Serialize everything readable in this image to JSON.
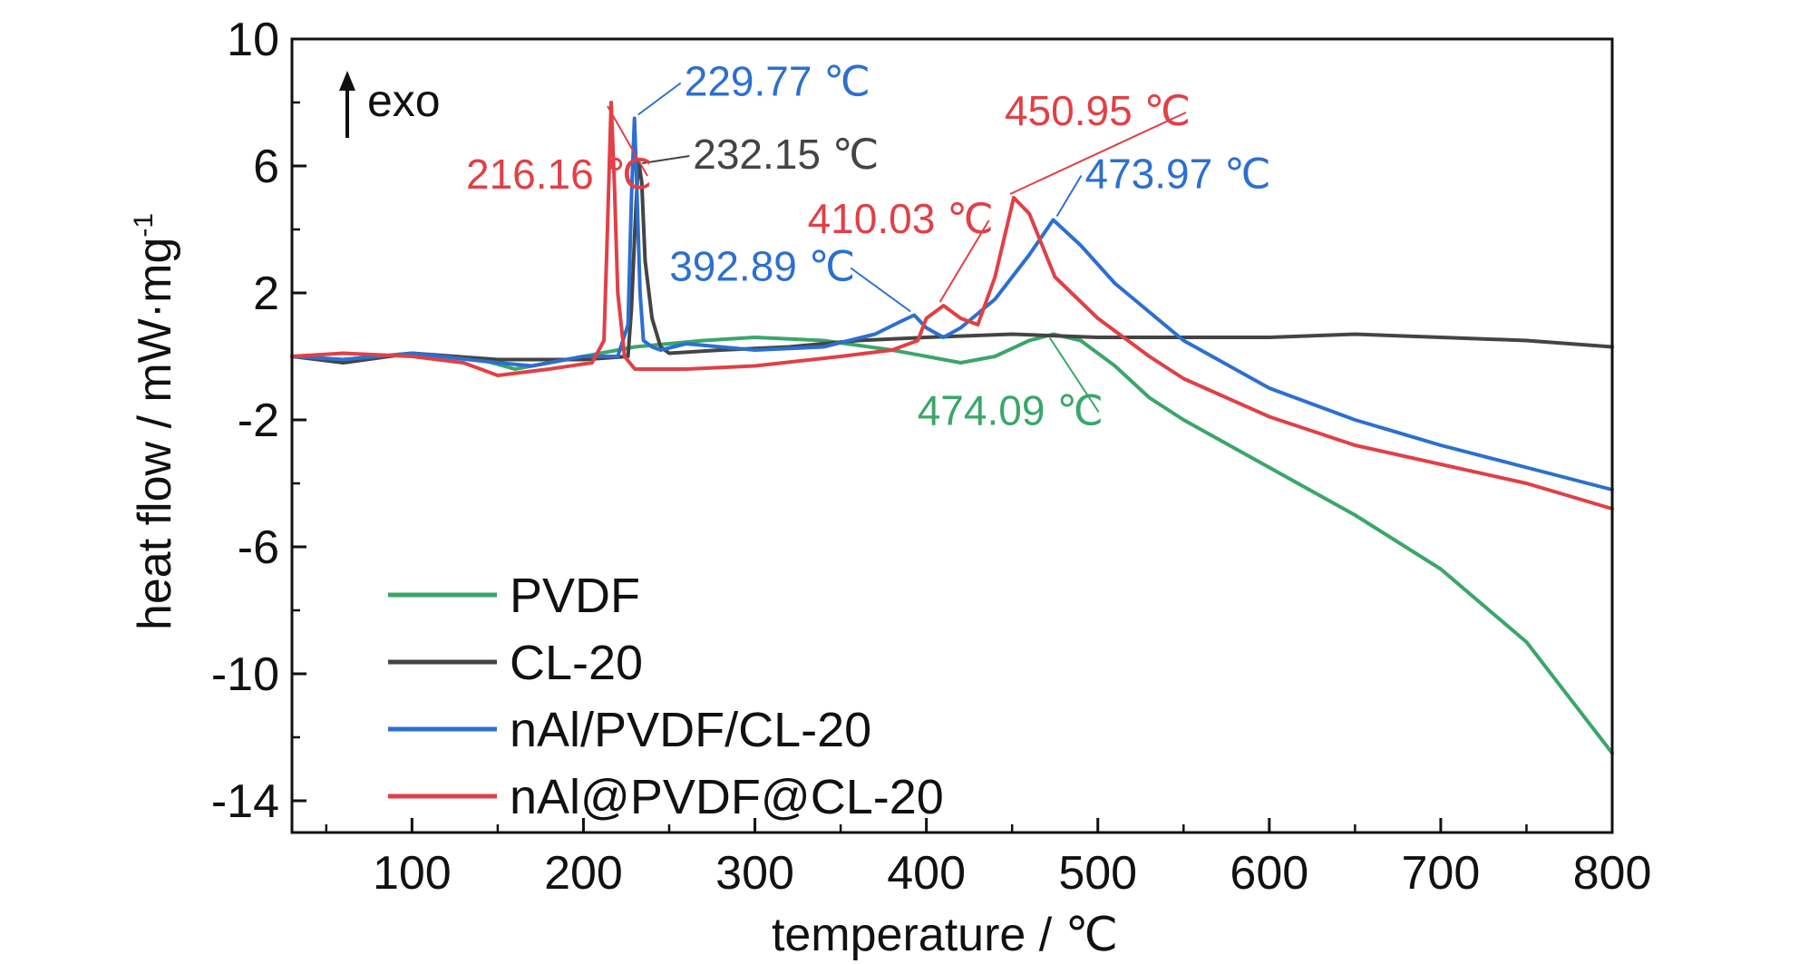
{
  "chart_data": {
    "type": "line",
    "title": "",
    "xlabel": "temperature / ℃",
    "ylabel": "heat flow / mW·mg",
    "ylabel_superscript": "-1",
    "xlim": [
      30,
      800
    ],
    "ylim": [
      -15,
      10
    ],
    "x_tick_labels": [
      "100",
      "200",
      "300",
      "400",
      "500",
      "600",
      "700",
      "800"
    ],
    "y_tick_labels": [
      "10",
      "6",
      "2",
      "-2",
      "-6",
      "-10",
      "-14"
    ],
    "grid": false,
    "legend_position": "bottom-left",
    "exo_label": "exo",
    "series": [
      {
        "name": "PVDF",
        "color": "#3aa66a",
        "x": [
          30,
          60,
          100,
          140,
          160,
          190,
          230,
          270,
          300,
          340,
          380,
          420,
          440,
          460,
          474,
          490,
          510,
          530,
          550,
          580,
          600,
          650,
          700,
          750,
          800
        ],
        "y": [
          0.0,
          -0.1,
          0.1,
          -0.1,
          -0.4,
          -0.1,
          0.3,
          0.5,
          0.6,
          0.5,
          0.2,
          -0.2,
          0.0,
          0.5,
          0.7,
          0.5,
          -0.3,
          -1.3,
          -2.0,
          -2.9,
          -3.5,
          -5.0,
          -6.7,
          -9.0,
          -12.5
        ]
      },
      {
        "name": "CL-20",
        "color": "#444444",
        "x": [
          30,
          60,
          100,
          150,
          200,
          226,
          228,
          230,
          232,
          234,
          236,
          240,
          245,
          250,
          280,
          320,
          360,
          400,
          450,
          500,
          550,
          600,
          650,
          700,
          750,
          800
        ],
        "y": [
          0.0,
          -0.2,
          0.1,
          -0.1,
          -0.1,
          0.0,
          1.5,
          4.0,
          6.2,
          5.5,
          3.0,
          1.2,
          0.3,
          0.1,
          0.2,
          0.3,
          0.5,
          0.6,
          0.7,
          0.6,
          0.6,
          0.6,
          0.7,
          0.6,
          0.5,
          0.3
        ]
      },
      {
        "name": "nAl/PVDF/CL-20",
        "color": "#2c6fd0",
        "x": [
          30,
          60,
          100,
          150,
          170,
          200,
          220,
          226,
          228,
          229.77,
          231,
          233,
          235,
          240,
          245,
          260,
          300,
          340,
          370,
          385,
          392.89,
          400,
          410,
          420,
          440,
          460,
          473.97,
          490,
          510,
          550,
          600,
          650,
          700,
          750,
          800
        ],
        "y": [
          0.0,
          -0.1,
          0.1,
          -0.2,
          -0.3,
          0.0,
          0.0,
          1.0,
          5.0,
          7.5,
          5.5,
          2.0,
          0.5,
          0.3,
          0.2,
          0.4,
          0.2,
          0.3,
          0.7,
          1.1,
          1.3,
          0.9,
          0.6,
          0.9,
          1.8,
          3.2,
          4.3,
          3.5,
          2.3,
          0.5,
          -1.0,
          -2.0,
          -2.8,
          -3.5,
          -4.2
        ]
      },
      {
        "name": "nAl@PVDF@CL-20",
        "color": "#e04046",
        "x": [
          30,
          60,
          100,
          130,
          150,
          180,
          205,
          212,
          214,
          216.16,
          218,
          220,
          224,
          230,
          260,
          300,
          350,
          380,
          395,
          400,
          410.03,
          420,
          430,
          440,
          450.95,
          460,
          475,
          500,
          530,
          550,
          600,
          650,
          700,
          750,
          800
        ],
        "y": [
          0.0,
          0.1,
          0.0,
          -0.2,
          -0.6,
          -0.4,
          -0.2,
          0.5,
          4.0,
          8.0,
          5.5,
          2.0,
          0.0,
          -0.4,
          -0.4,
          -0.3,
          0.0,
          0.2,
          0.5,
          1.2,
          1.6,
          1.2,
          1.0,
          2.5,
          5.0,
          4.5,
          2.5,
          1.2,
          0.0,
          -0.7,
          -1.9,
          -2.8,
          -3.4,
          -4.0,
          -4.8
        ]
      }
    ],
    "annotations": [
      {
        "label": "229.77 ℃",
        "series": "nAl/PVDF/CL-20",
        "x": 229.77,
        "y": 7.5
      },
      {
        "label": "232.15 ℃",
        "series": "CL-20",
        "x": 232.15,
        "y": 6.2
      },
      {
        "label": "216.16 ℃",
        "series": "nAl@PVDF@CL-20",
        "x": 216.16,
        "y": 8.0
      },
      {
        "label": "450.95 ℃",
        "series": "nAl@PVDF@CL-20",
        "x": 450.95,
        "y": 5.0
      },
      {
        "label": "473.97 ℃",
        "series": "nAl/PVDF/CL-20",
        "x": 473.97,
        "y": 4.3
      },
      {
        "label": "410.03 ℃",
        "series": "nAl@PVDF@CL-20",
        "x": 410.03,
        "y": 1.6
      },
      {
        "label": "392.89 ℃",
        "series": "nAl/PVDF/CL-20",
        "x": 392.89,
        "y": 1.3
      },
      {
        "label": "474.09 ℃",
        "series": "PVDF",
        "x": 474.09,
        "y": 0.7
      }
    ]
  }
}
